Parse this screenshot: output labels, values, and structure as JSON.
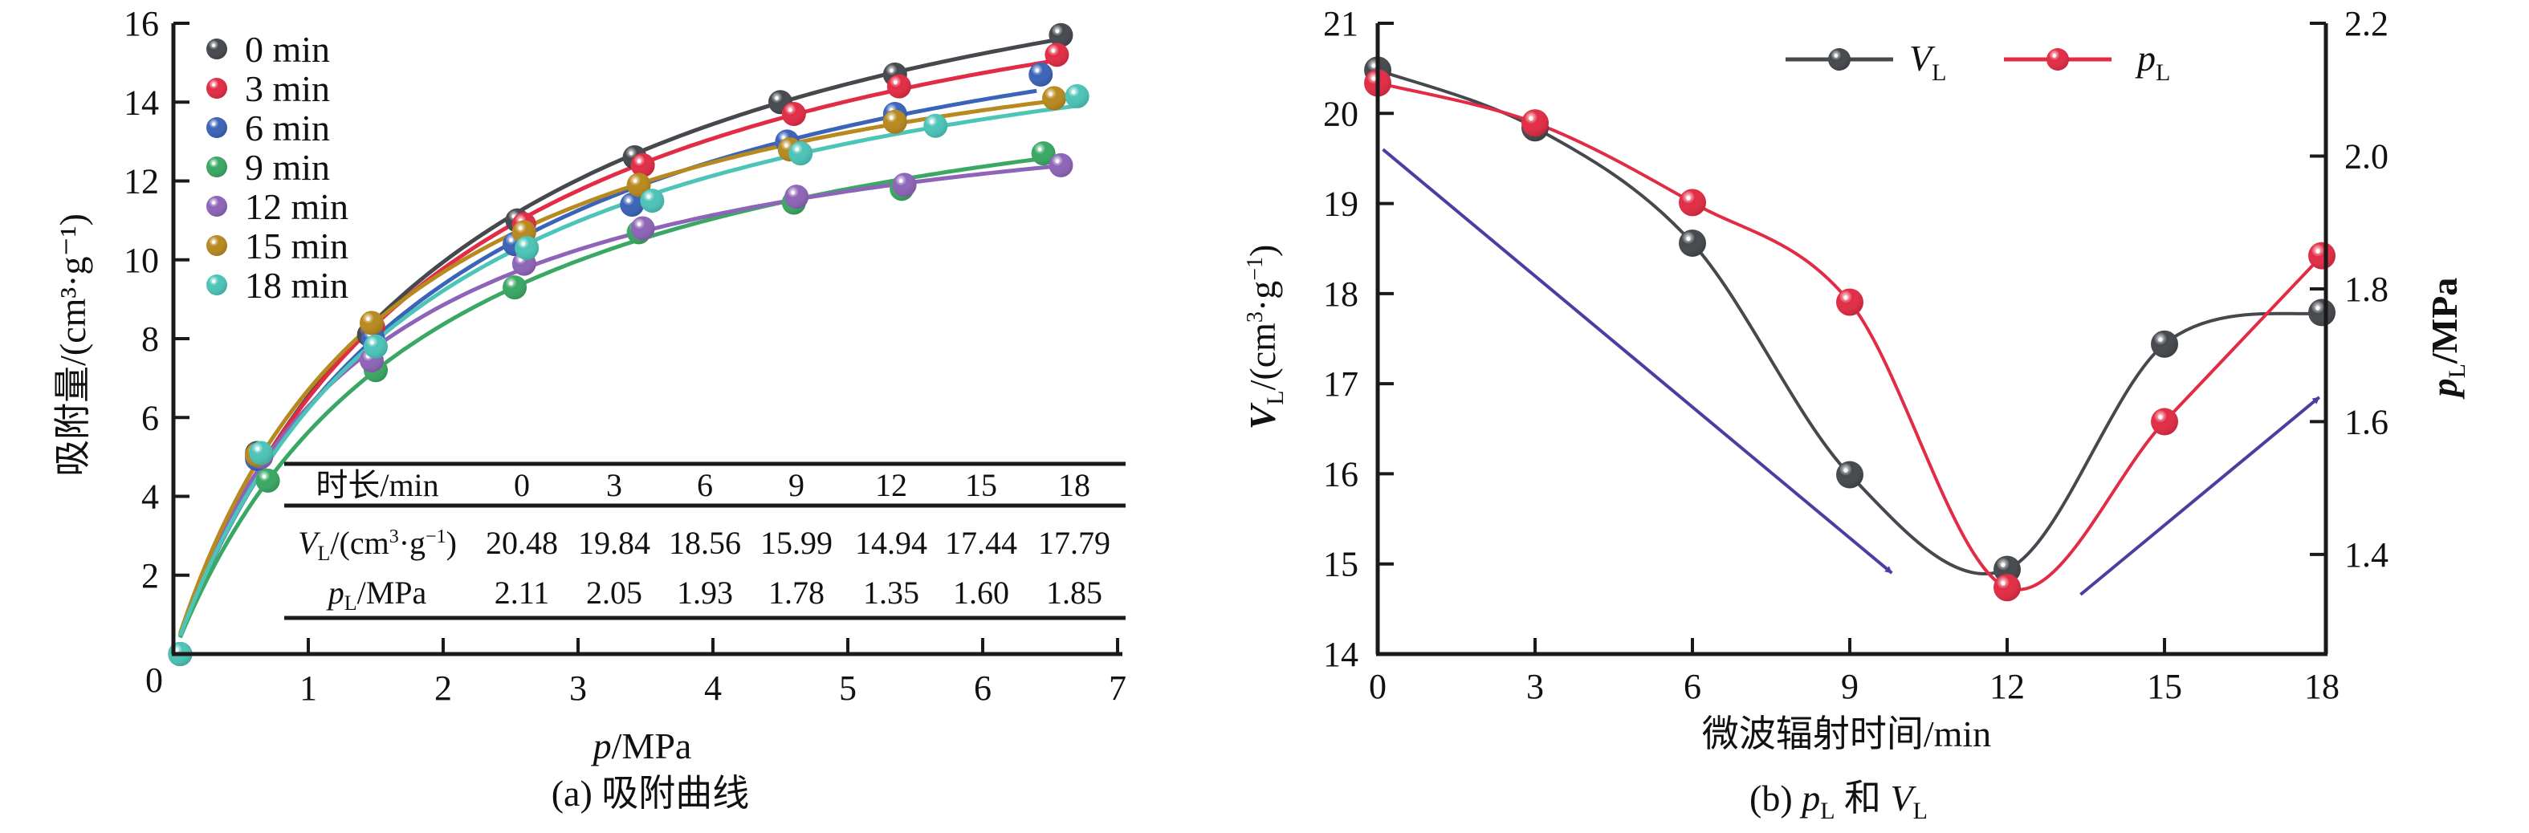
{
  "chart_data": [
    {
      "type": "scatter",
      "panel": "a",
      "caption": "(a) 吸附曲线",
      "xlabel": "p/MPa",
      "ylabel": "吸附量/(cm³·g⁻¹)",
      "xlim": [
        0,
        7
      ],
      "ylim": [
        0,
        16
      ],
      "xticks": [
        "0",
        "1",
        "2",
        "3",
        "4",
        "5",
        "6",
        "7"
      ],
      "yticks": [
        "2",
        "4",
        "6",
        "8",
        "10",
        "12",
        "14",
        "16"
      ],
      "grid": false,
      "legend_position": "top-left",
      "series": [
        {
          "name": "0 min",
          "color": "#45484d",
          "x": [
            0.05,
            0.62,
            1.45,
            2.55,
            3.42,
            4.5,
            5.35,
            6.58
          ],
          "y": [
            0,
            5.1,
            8.1,
            11.0,
            12.6,
            14.0,
            14.7,
            15.7
          ]
        },
        {
          "name": "3 min",
          "color": "#e22c45",
          "x": [
            0.05,
            0.62,
            1.48,
            2.6,
            3.48,
            4.6,
            5.38,
            6.55
          ],
          "y": [
            0,
            5.0,
            8.3,
            10.9,
            12.4,
            13.7,
            14.4,
            15.2
          ]
        },
        {
          "name": "6 min",
          "color": "#3b63b8",
          "x": [
            0.05,
            0.62,
            1.48,
            2.53,
            3.4,
            4.55,
            5.35,
            6.43
          ],
          "y": [
            0,
            4.95,
            8.0,
            10.4,
            11.4,
            13.0,
            13.7,
            14.7
          ]
        },
        {
          "name": "9 min",
          "color": "#3aa864",
          "x": [
            0.05,
            0.7,
            1.5,
            2.53,
            3.45,
            4.6,
            5.4,
            6.45
          ],
          "y": [
            0,
            4.4,
            7.2,
            9.3,
            10.7,
            11.45,
            11.8,
            12.7
          ]
        },
        {
          "name": "12 min",
          "color": "#8e64b8",
          "x": [
            0.05,
            0.65,
            1.47,
            2.6,
            3.48,
            4.62,
            5.42,
            6.58
          ],
          "y": [
            0,
            5.0,
            7.45,
            9.9,
            10.8,
            11.6,
            11.9,
            12.4
          ]
        },
        {
          "name": "15 min",
          "color": "#b8891e",
          "x": [
            0.05,
            0.62,
            1.47,
            2.6,
            3.45,
            4.57,
            5.35,
            6.53
          ],
          "y": [
            0,
            5.05,
            8.4,
            10.7,
            11.9,
            12.8,
            13.5,
            14.1
          ]
        },
        {
          "name": "18 min",
          "color": "#4cc4b8",
          "x": [
            0.05,
            0.65,
            1.5,
            2.62,
            3.55,
            4.65,
            5.65,
            6.7
          ],
          "y": [
            0,
            5.1,
            7.8,
            10.3,
            11.5,
            12.7,
            13.4,
            14.15
          ]
        }
      ],
      "fit_curves": "Langmuir-type fitted lines for each series",
      "inset_table": {
        "header": [
          "时长/min",
          "0",
          "3",
          "6",
          "9",
          "12",
          "15",
          "18"
        ],
        "rows": [
          {
            "label": "VL/(cm³·g⁻¹)",
            "label_main": "V",
            "label_sub": "L",
            "label_rest": "/(cm³·g⁻¹)",
            "values": [
              "20.48",
              "19.84",
              "18.56",
              "15.99",
              "14.94",
              "17.44",
              "17.79"
            ]
          },
          {
            "label": "pL/MPa",
            "label_main": "p",
            "label_sub": "L",
            "label_rest": "/MPa",
            "values": [
              "2.11",
              "2.05",
              "1.93",
              "1.78",
              "1.35",
              "1.60",
              "1.85"
            ]
          }
        ]
      }
    },
    {
      "type": "line",
      "panel": "b",
      "caption": "(b) pL 和 VL",
      "caption_parts": {
        "prefix": "(b) ",
        "p": "p",
        "p_sub": "L",
        "mid": " 和 ",
        "v": "V",
        "v_sub": "L"
      },
      "xlabel": "微波辐射时间/min",
      "ylabel_left": "VL/(cm³·g⁻¹)",
      "ylabel_right": "pL/MPa",
      "x": [
        0,
        3,
        6,
        9,
        12,
        15,
        18
      ],
      "xticks": [
        "0",
        "3",
        "6",
        "9",
        "12",
        "15",
        "18"
      ],
      "xlim": [
        0,
        18
      ],
      "ylim_left": [
        14,
        21
      ],
      "yticks_left": [
        "14",
        "15",
        "16",
        "17",
        "18",
        "19",
        "20",
        "21"
      ],
      "ylim_right": [
        1.25,
        2.2
      ],
      "yticks_right": [
        "1.4",
        "1.6",
        "1.8",
        "2.0",
        "2.2"
      ],
      "grid": false,
      "legend_position": "top-center",
      "series": [
        {
          "name": "VL",
          "name_main": "V",
          "name_sub": "L",
          "axis": "left",
          "color": "#45484d",
          "values": [
            20.48,
            19.84,
            18.56,
            15.99,
            14.94,
            17.44,
            17.79
          ]
        },
        {
          "name": "pL",
          "name_main": "p",
          "name_sub": "L",
          "axis": "right",
          "color": "#e22c45",
          "values": [
            2.11,
            2.05,
            1.93,
            1.78,
            1.35,
            1.6,
            1.85
          ]
        }
      ],
      "annotations": [
        {
          "type": "arrow",
          "direction": "decreasing",
          "color": "#4a3fa0",
          "from": [
            0.1,
            19.6
          ],
          "to": [
            9.8,
            14.9
          ]
        },
        {
          "type": "arrow",
          "direction": "increasing",
          "color": "#4a3fa0",
          "from": [
            13.4,
            14.66
          ],
          "to": [
            17.95,
            16.85
          ]
        }
      ]
    }
  ]
}
